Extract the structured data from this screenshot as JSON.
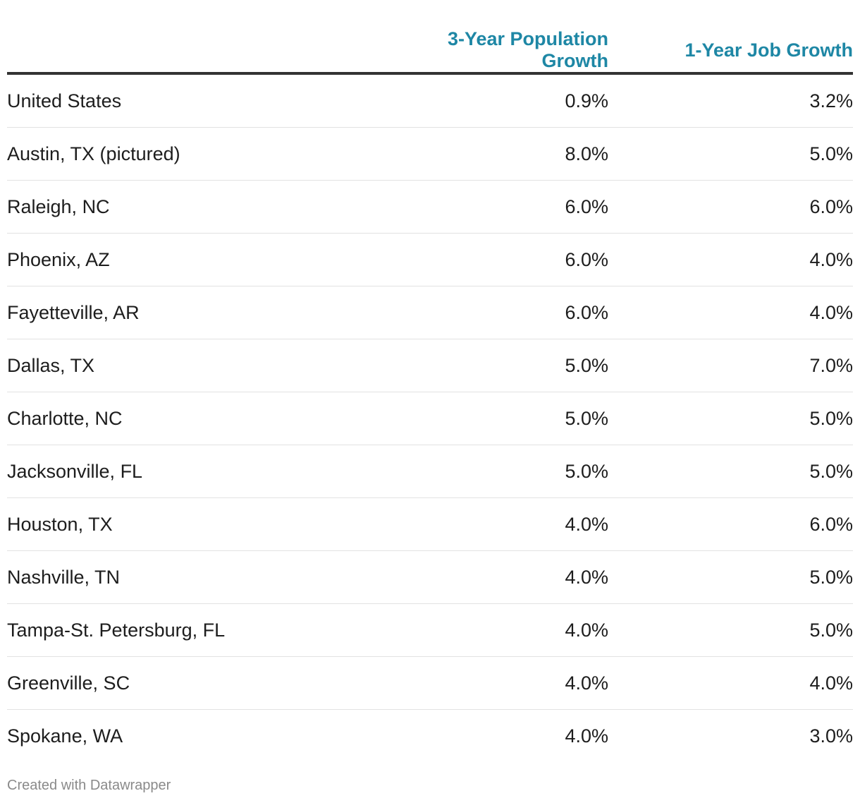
{
  "chart_data": {
    "type": "table",
    "columns": [
      "",
      "3-Year Population Growth",
      "1-Year Job Growth"
    ],
    "rows": [
      {
        "name": "United States",
        "pop_growth": "0.9%",
        "job_growth": "3.2%"
      },
      {
        "name": "Austin, TX (pictured)",
        "pop_growth": "8.0%",
        "job_growth": "5.0%"
      },
      {
        "name": "Raleigh, NC",
        "pop_growth": "6.0%",
        "job_growth": "6.0%"
      },
      {
        "name": "Phoenix, AZ",
        "pop_growth": "6.0%",
        "job_growth": "4.0%"
      },
      {
        "name": "Fayetteville, AR",
        "pop_growth": "6.0%",
        "job_growth": "4.0%"
      },
      {
        "name": "Dallas, TX",
        "pop_growth": "5.0%",
        "job_growth": "7.0%"
      },
      {
        "name": "Charlotte, NC",
        "pop_growth": "5.0%",
        "job_growth": "5.0%"
      },
      {
        "name": "Jacksonville, FL",
        "pop_growth": "5.0%",
        "job_growth": "5.0%"
      },
      {
        "name": "Houston, TX",
        "pop_growth": "4.0%",
        "job_growth": "6.0%"
      },
      {
        "name": "Nashville, TN",
        "pop_growth": "4.0%",
        "job_growth": "5.0%"
      },
      {
        "name": "Tampa-St. Petersburg, FL",
        "pop_growth": "4.0%",
        "job_growth": "5.0%"
      },
      {
        "name": "Greenville, SC",
        "pop_growth": "4.0%",
        "job_growth": "4.0%"
      },
      {
        "name": "Spokane, WA",
        "pop_growth": "4.0%",
        "job_growth": "3.0%"
      }
    ],
    "header_color": "#1e87a5"
  },
  "footer": {
    "credit": "Created with Datawrapper"
  }
}
